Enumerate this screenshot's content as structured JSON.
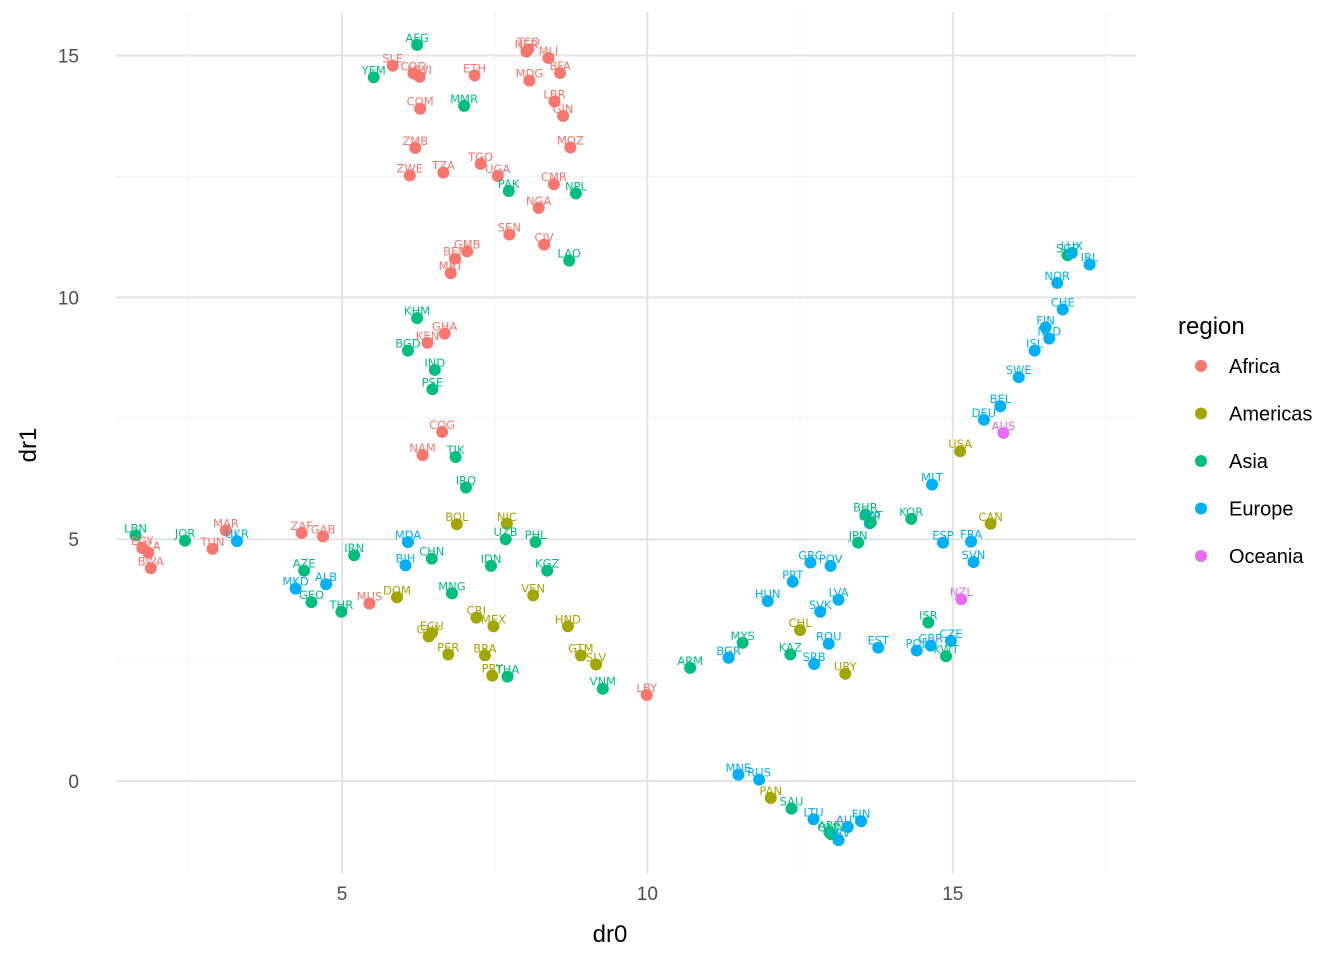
{
  "chart_data": {
    "type": "scatter",
    "xlabel": "dr0",
    "ylabel": "dr1",
    "xlim": [
      1.3,
      18.0
    ],
    "ylim": [
      -1.9,
      15.9
    ],
    "x_ticks": [
      5,
      10,
      15
    ],
    "y_ticks": [
      0,
      5,
      10,
      15
    ],
    "grid": true,
    "legend": {
      "title": "region",
      "position": "right",
      "entries": [
        "Africa",
        "Americas",
        "Asia",
        "Europe",
        "Oceania"
      ]
    },
    "colors": {
      "Africa": "#F8766D",
      "Americas": "#A3A500",
      "Asia": "#00BF7D",
      "Europe": "#00B0F6",
      "Oceania": "#E76BF3"
    },
    "points": [
      {
        "label": "AFG",
        "region": "Asia",
        "x": 6.23,
        "y": 15.22
      },
      {
        "label": "SLE",
        "region": "Africa",
        "x": 5.83,
        "y": 14.79
      },
      {
        "label": "COD",
        "region": "Africa",
        "x": 6.17,
        "y": 14.63
      },
      {
        "label": "MWI",
        "region": "Africa",
        "x": 6.27,
        "y": 14.56
      },
      {
        "label": "YEM",
        "region": "Asia",
        "x": 5.52,
        "y": 14.55
      },
      {
        "label": "ETH",
        "region": "Africa",
        "x": 7.17,
        "y": 14.59
      },
      {
        "label": "TCD",
        "region": "Africa",
        "x": 8.05,
        "y": 15.13
      },
      {
        "label": "NER",
        "region": "Africa",
        "x": 8.02,
        "y": 15.08
      },
      {
        "label": "MLI",
        "region": "Africa",
        "x": 8.38,
        "y": 14.95
      },
      {
        "label": "MDG",
        "region": "Africa",
        "x": 8.07,
        "y": 14.48
      },
      {
        "label": "BFA",
        "region": "Africa",
        "x": 8.57,
        "y": 14.64
      },
      {
        "label": "LBR",
        "region": "Africa",
        "x": 8.48,
        "y": 14.05
      },
      {
        "label": "GIN",
        "region": "Africa",
        "x": 8.62,
        "y": 13.75
      },
      {
        "label": "COM",
        "region": "Africa",
        "x": 6.28,
        "y": 13.9
      },
      {
        "label": "MMR",
        "region": "Asia",
        "x": 7.0,
        "y": 13.96
      },
      {
        "label": "ZMB",
        "region": "Africa",
        "x": 6.2,
        "y": 13.09
      },
      {
        "label": "MOZ",
        "region": "Africa",
        "x": 8.74,
        "y": 13.1
      },
      {
        "label": "TGO",
        "region": "Africa",
        "x": 7.27,
        "y": 12.76
      },
      {
        "label": "ZWE",
        "region": "Africa",
        "x": 6.11,
        "y": 12.52
      },
      {
        "label": "TZA",
        "region": "Africa",
        "x": 6.66,
        "y": 12.58
      },
      {
        "label": "UGA",
        "region": "Africa",
        "x": 7.55,
        "y": 12.51
      },
      {
        "label": "CMR",
        "region": "Africa",
        "x": 8.47,
        "y": 12.34
      },
      {
        "label": "PAK",
        "region": "Asia",
        "x": 7.73,
        "y": 12.2
      },
      {
        "label": "NPL",
        "region": "Asia",
        "x": 8.83,
        "y": 12.15
      },
      {
        "label": "NGA",
        "region": "Africa",
        "x": 8.22,
        "y": 11.85
      },
      {
        "label": "SEN",
        "region": "Africa",
        "x": 7.74,
        "y": 11.3
      },
      {
        "label": "CIV",
        "region": "Africa",
        "x": 8.31,
        "y": 11.09
      },
      {
        "label": "GMB",
        "region": "Africa",
        "x": 7.05,
        "y": 10.95
      },
      {
        "label": "BEN",
        "region": "Africa",
        "x": 6.85,
        "y": 10.8
      },
      {
        "label": "LAO",
        "region": "Asia",
        "x": 8.72,
        "y": 10.76
      },
      {
        "label": "MRT",
        "region": "Africa",
        "x": 6.78,
        "y": 10.5
      },
      {
        "label": "KHM",
        "region": "Asia",
        "x": 6.23,
        "y": 9.57
      },
      {
        "label": "GHA",
        "region": "Africa",
        "x": 6.68,
        "y": 9.25
      },
      {
        "label": "KEN",
        "region": "Africa",
        "x": 6.4,
        "y": 9.06
      },
      {
        "label": "BGD",
        "region": "Asia",
        "x": 6.08,
        "y": 8.9
      },
      {
        "label": "IND",
        "region": "Asia",
        "x": 6.52,
        "y": 8.5
      },
      {
        "label": "PSE",
        "region": "Asia",
        "x": 6.48,
        "y": 8.1
      },
      {
        "label": "COG",
        "region": "Africa",
        "x": 6.64,
        "y": 7.22
      },
      {
        "label": "NAM",
        "region": "Africa",
        "x": 6.32,
        "y": 6.74
      },
      {
        "label": "TJK",
        "region": "Asia",
        "x": 6.86,
        "y": 6.7
      },
      {
        "label": "IRQ",
        "region": "Asia",
        "x": 7.03,
        "y": 6.07
      },
      {
        "label": "BOL",
        "region": "Americas",
        "x": 6.88,
        "y": 5.31
      },
      {
        "label": "NIC",
        "region": "Americas",
        "x": 7.7,
        "y": 5.32
      },
      {
        "label": "UZB",
        "region": "Asia",
        "x": 7.68,
        "y": 5.0
      },
      {
        "label": "PHL",
        "region": "Asia",
        "x": 8.17,
        "y": 4.94
      },
      {
        "label": "LBN",
        "region": "Asia",
        "x": 1.62,
        "y": 5.08
      },
      {
        "label": "EGY",
        "region": "Africa",
        "x": 1.73,
        "y": 4.82
      },
      {
        "label": "DZA",
        "region": "Africa",
        "x": 1.83,
        "y": 4.72
      },
      {
        "label": "BWA",
        "region": "Africa",
        "x": 1.87,
        "y": 4.4
      },
      {
        "label": "JOR",
        "region": "Asia",
        "x": 2.43,
        "y": 4.97
      },
      {
        "label": "MAR",
        "region": "Africa",
        "x": 3.1,
        "y": 5.18
      },
      {
        "label": "TUN",
        "region": "Africa",
        "x": 2.88,
        "y": 4.8
      },
      {
        "label": "UKR",
        "region": "Europe",
        "x": 3.28,
        "y": 4.96
      },
      {
        "label": "ZAF",
        "region": "Africa",
        "x": 4.34,
        "y": 5.13
      },
      {
        "label": "GAB",
        "region": "Africa",
        "x": 4.69,
        "y": 5.06
      },
      {
        "label": "MDA",
        "region": "Europe",
        "x": 6.08,
        "y": 4.94
      },
      {
        "label": "IRN",
        "region": "Asia",
        "x": 5.2,
        "y": 4.67
      },
      {
        "label": "CHN",
        "region": "Asia",
        "x": 6.47,
        "y": 4.6
      },
      {
        "label": "BIH",
        "region": "Europe",
        "x": 6.04,
        "y": 4.46
      },
      {
        "label": "IDN",
        "region": "Asia",
        "x": 7.44,
        "y": 4.45
      },
      {
        "label": "KGZ",
        "region": "Asia",
        "x": 8.36,
        "y": 4.35
      },
      {
        "label": "AZE",
        "region": "Asia",
        "x": 4.38,
        "y": 4.35
      },
      {
        "label": "ALB",
        "region": "Europe",
        "x": 4.74,
        "y": 4.07
      },
      {
        "label": "MKD",
        "region": "Europe",
        "x": 4.24,
        "y": 3.98
      },
      {
        "label": "GEO",
        "region": "Asia",
        "x": 4.5,
        "y": 3.7
      },
      {
        "label": "MNG",
        "region": "Asia",
        "x": 6.8,
        "y": 3.88
      },
      {
        "label": "DOM",
        "region": "Americas",
        "x": 5.9,
        "y": 3.8
      },
      {
        "label": "VEN",
        "region": "Americas",
        "x": 8.13,
        "y": 3.84
      },
      {
        "label": "MUS",
        "region": "Africa",
        "x": 5.45,
        "y": 3.67
      },
      {
        "label": "THR",
        "region": "Asia",
        "x": 4.99,
        "y": 3.5
      },
      {
        "label": "CRI",
        "region": "Americas",
        "x": 7.2,
        "y": 3.38
      },
      {
        "label": "MEX",
        "region": "Americas",
        "x": 7.48,
        "y": 3.2
      },
      {
        "label": "HND",
        "region": "Americas",
        "x": 8.7,
        "y": 3.2
      },
      {
        "label": "ECU",
        "region": "Americas",
        "x": 6.47,
        "y": 3.06
      },
      {
        "label": "GUY",
        "region": "Americas",
        "x": 6.42,
        "y": 2.99
      },
      {
        "label": "PER",
        "region": "Americas",
        "x": 6.74,
        "y": 2.62
      },
      {
        "label": "BRA",
        "region": "Americas",
        "x": 7.34,
        "y": 2.6
      },
      {
        "label": "GTM",
        "region": "Americas",
        "x": 8.91,
        "y": 2.6
      },
      {
        "label": "SLV",
        "region": "Americas",
        "x": 9.16,
        "y": 2.41
      },
      {
        "label": "PRY",
        "region": "Americas",
        "x": 7.46,
        "y": 2.18
      },
      {
        "label": "THA",
        "region": "Asia",
        "x": 7.71,
        "y": 2.16
      },
      {
        "label": "VNM",
        "region": "Asia",
        "x": 9.27,
        "y": 1.91
      },
      {
        "label": "LBY",
        "region": "Africa",
        "x": 9.99,
        "y": 1.78
      },
      {
        "label": "ARM",
        "region": "Asia",
        "x": 10.7,
        "y": 2.34
      },
      {
        "label": "BGR",
        "region": "Europe",
        "x": 11.33,
        "y": 2.55
      },
      {
        "label": "MYS",
        "region": "Asia",
        "x": 11.56,
        "y": 2.86
      },
      {
        "label": "KAZ",
        "region": "Asia",
        "x": 12.34,
        "y": 2.62
      },
      {
        "label": "CHL",
        "region": "Americas",
        "x": 12.5,
        "y": 3.12
      },
      {
        "label": "SRB",
        "region": "Europe",
        "x": 12.73,
        "y": 2.42
      },
      {
        "label": "ROU",
        "region": "Europe",
        "x": 12.97,
        "y": 2.84
      },
      {
        "label": "URY",
        "region": "Americas",
        "x": 13.24,
        "y": 2.22
      },
      {
        "label": "HUN",
        "region": "Europe",
        "x": 11.97,
        "y": 3.72
      },
      {
        "label": "SVK",
        "region": "Europe",
        "x": 12.83,
        "y": 3.5
      },
      {
        "label": "LVA",
        "region": "Europe",
        "x": 13.13,
        "y": 3.75
      },
      {
        "label": "PRT",
        "region": "Europe",
        "x": 12.38,
        "y": 4.12
      },
      {
        "label": "GRC",
        "region": "Europe",
        "x": 12.67,
        "y": 4.52
      },
      {
        "label": "POV",
        "region": "Europe",
        "x": 13.0,
        "y": 4.45
      },
      {
        "label": "EST",
        "region": "Europe",
        "x": 13.78,
        "y": 2.76
      },
      {
        "label": "ISR",
        "region": "Asia",
        "x": 14.6,
        "y": 3.28
      },
      {
        "label": "POL",
        "region": "Europe",
        "x": 14.41,
        "y": 2.7
      },
      {
        "label": "GBR",
        "region": "Europe",
        "x": 14.64,
        "y": 2.8
      },
      {
        "label": "CZE",
        "region": "Europe",
        "x": 14.97,
        "y": 2.9
      },
      {
        "label": "KWT",
        "region": "Asia",
        "x": 14.89,
        "y": 2.58
      },
      {
        "label": "NZL",
        "region": "Oceania",
        "x": 15.14,
        "y": 3.76
      },
      {
        "label": "JPN",
        "region": "Asia",
        "x": 13.45,
        "y": 4.93
      },
      {
        "label": "BHR",
        "region": "Asia",
        "x": 13.57,
        "y": 5.51
      },
      {
        "label": "CYP",
        "region": "Europe",
        "x": 13.64,
        "y": 5.33
      },
      {
        "label": "QAT",
        "region": "Asia",
        "x": 13.66,
        "y": 5.35
      },
      {
        "label": "KOR",
        "region": "Asia",
        "x": 14.32,
        "y": 5.42
      },
      {
        "label": "ESP",
        "region": "Europe",
        "x": 14.84,
        "y": 4.93
      },
      {
        "label": "FRA",
        "region": "Europe",
        "x": 15.3,
        "y": 4.95
      },
      {
        "label": "SVN",
        "region": "Europe",
        "x": 15.34,
        "y": 4.53
      },
      {
        "label": "CAN",
        "region": "Americas",
        "x": 15.62,
        "y": 5.32
      },
      {
        "label": "MLT",
        "region": "Europe",
        "x": 14.66,
        "y": 6.13
      },
      {
        "label": "USA",
        "region": "Americas",
        "x": 15.12,
        "y": 6.82
      },
      {
        "label": "DEU",
        "region": "Europe",
        "x": 15.51,
        "y": 7.47
      },
      {
        "label": "AUS",
        "region": "Oceania",
        "x": 15.83,
        "y": 7.2
      },
      {
        "label": "BEL",
        "region": "Europe",
        "x": 15.78,
        "y": 7.75
      },
      {
        "label": "SWE",
        "region": "Europe",
        "x": 16.08,
        "y": 8.35
      },
      {
        "label": "ISL",
        "region": "Europe",
        "x": 16.34,
        "y": 8.9
      },
      {
        "label": "FIN",
        "region": "Europe",
        "x": 16.52,
        "y": 9.38
      },
      {
        "label": "NLD",
        "region": "Europe",
        "x": 16.58,
        "y": 9.15
      },
      {
        "label": "CHE",
        "region": "Europe",
        "x": 16.8,
        "y": 9.75
      },
      {
        "label": "NOR",
        "region": "Europe",
        "x": 16.71,
        "y": 10.3
      },
      {
        "label": "SGP",
        "region": "Asia",
        "x": 16.88,
        "y": 10.87
      },
      {
        "label": "LUX",
        "region": "Europe",
        "x": 16.95,
        "y": 10.92
      },
      {
        "label": "IRL",
        "region": "Europe",
        "x": 17.24,
        "y": 10.68
      },
      {
        "label": "MNE",
        "region": "Europe",
        "x": 11.49,
        "y": 0.13
      },
      {
        "label": "RUS",
        "region": "Europe",
        "x": 11.83,
        "y": 0.03
      },
      {
        "label": "PAN",
        "region": "Americas",
        "x": 12.02,
        "y": -0.35
      },
      {
        "label": "SAU",
        "region": "Asia",
        "x": 12.36,
        "y": -0.57
      },
      {
        "label": "LTU",
        "region": "Europe",
        "x": 12.72,
        "y": -0.79
      },
      {
        "label": "ARE",
        "region": "Asia",
        "x": 12.98,
        "y": -1.06
      },
      {
        "label": "OMN",
        "region": "Asia",
        "x": 13.01,
        "y": -1.1
      },
      {
        "label": "HRV",
        "region": "Europe",
        "x": 13.13,
        "y": -1.22
      },
      {
        "label": "AUT",
        "region": "Europe",
        "x": 13.28,
        "y": -0.95
      },
      {
        "label": "FIN2",
        "region": "Europe",
        "x": 13.5,
        "y": -0.83
      }
    ]
  }
}
